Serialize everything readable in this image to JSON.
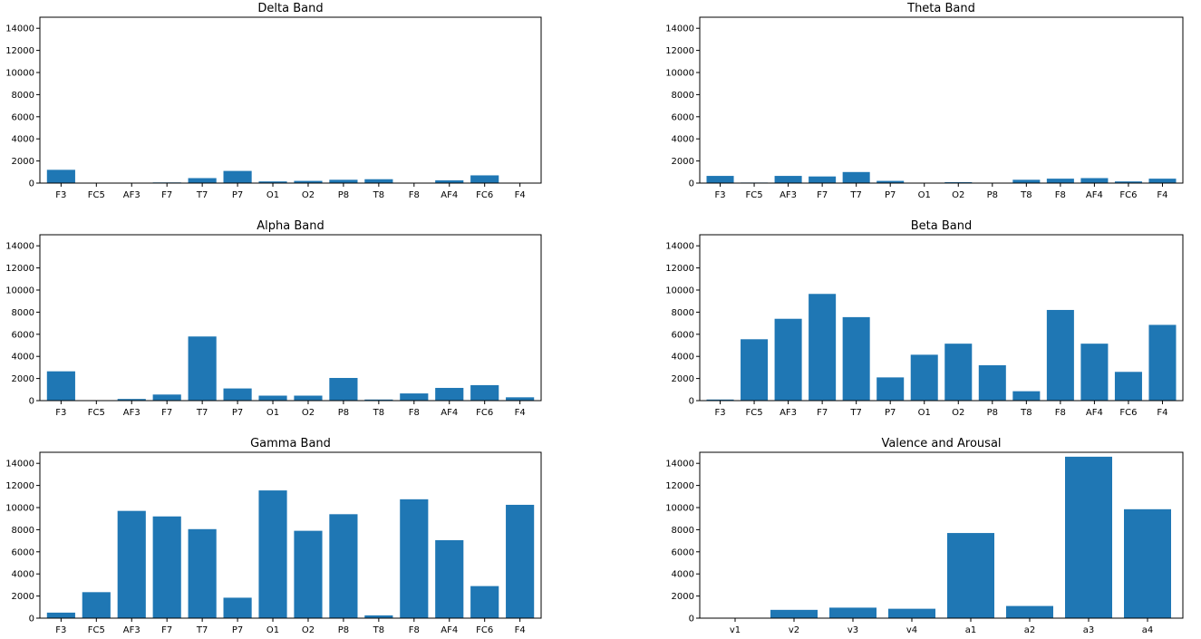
{
  "chart_data": [
    {
      "type": "bar",
      "title": "Delta Band",
      "categories": [
        "F3",
        "FC5",
        "AF3",
        "F7",
        "T7",
        "P7",
        "O1",
        "O2",
        "P8",
        "T8",
        "F8",
        "AF4",
        "FC6",
        "F4"
      ],
      "values": [
        1200,
        20,
        20,
        60,
        450,
        1100,
        150,
        200,
        300,
        350,
        0,
        250,
        700,
        0
      ],
      "ylim": [
        0,
        15000
      ],
      "yticks": [
        0,
        2000,
        4000,
        6000,
        8000,
        10000,
        12000,
        14000
      ],
      "color": "#1f77b4"
    },
    {
      "type": "bar",
      "title": "Theta Band",
      "categories": [
        "F3",
        "FC5",
        "AF3",
        "F7",
        "T7",
        "P7",
        "O1",
        "O2",
        "P8",
        "T8",
        "F8",
        "AF4",
        "FC6",
        "F4"
      ],
      "values": [
        650,
        50,
        650,
        600,
        1000,
        200,
        10,
        80,
        20,
        300,
        400,
        450,
        150,
        400
      ],
      "ylim": [
        0,
        15000
      ],
      "yticks": [
        0,
        2000,
        4000,
        6000,
        8000,
        10000,
        12000,
        14000
      ],
      "color": "#1f77b4"
    },
    {
      "type": "bar",
      "title": "Alpha Band",
      "categories": [
        "F3",
        "FC5",
        "AF3",
        "F7",
        "T7",
        "P7",
        "O1",
        "O2",
        "P8",
        "T8",
        "F8",
        "AF4",
        "FC6",
        "F4"
      ],
      "values": [
        2650,
        20,
        150,
        550,
        5800,
        1100,
        450,
        450,
        2050,
        100,
        650,
        1150,
        1400,
        300
      ],
      "ylim": [
        0,
        15000
      ],
      "yticks": [
        0,
        2000,
        4000,
        6000,
        8000,
        10000,
        12000,
        14000
      ],
      "color": "#1f77b4"
    },
    {
      "type": "bar",
      "title": "Beta Band",
      "categories": [
        "F3",
        "FC5",
        "AF3",
        "F7",
        "T7",
        "P7",
        "O1",
        "O2",
        "P8",
        "T8",
        "F8",
        "AF4",
        "FC6",
        "F4"
      ],
      "values": [
        100,
        5550,
        7400,
        9650,
        7550,
        2100,
        4150,
        5150,
        3200,
        850,
        8200,
        5150,
        2600,
        6850
      ],
      "ylim": [
        0,
        15000
      ],
      "yticks": [
        0,
        2000,
        4000,
        6000,
        8000,
        10000,
        12000,
        14000
      ],
      "color": "#1f77b4"
    },
    {
      "type": "bar",
      "title": "Gamma Band",
      "categories": [
        "F3",
        "FC5",
        "AF3",
        "F7",
        "T7",
        "P7",
        "O1",
        "O2",
        "P8",
        "T8",
        "F8",
        "AF4",
        "FC6",
        "F4"
      ],
      "values": [
        500,
        2350,
        9700,
        9200,
        8050,
        1850,
        11550,
        7900,
        9400,
        250,
        10750,
        7050,
        2900,
        10250
      ],
      "ylim": [
        0,
        15000
      ],
      "yticks": [
        0,
        2000,
        4000,
        6000,
        8000,
        10000,
        12000,
        14000
      ],
      "color": "#1f77b4"
    },
    {
      "type": "bar",
      "title": "Valence and Arousal",
      "categories": [
        "v1",
        "v2",
        "v3",
        "v4",
        "a1",
        "a2",
        "a3",
        "a4"
      ],
      "values": [
        0,
        750,
        950,
        850,
        7700,
        1100,
        14600,
        9850
      ],
      "ylim": [
        0,
        15000
      ],
      "yticks": [
        0,
        2000,
        4000,
        6000,
        8000,
        10000,
        12000,
        14000
      ],
      "color": "#1f77b4"
    }
  ]
}
